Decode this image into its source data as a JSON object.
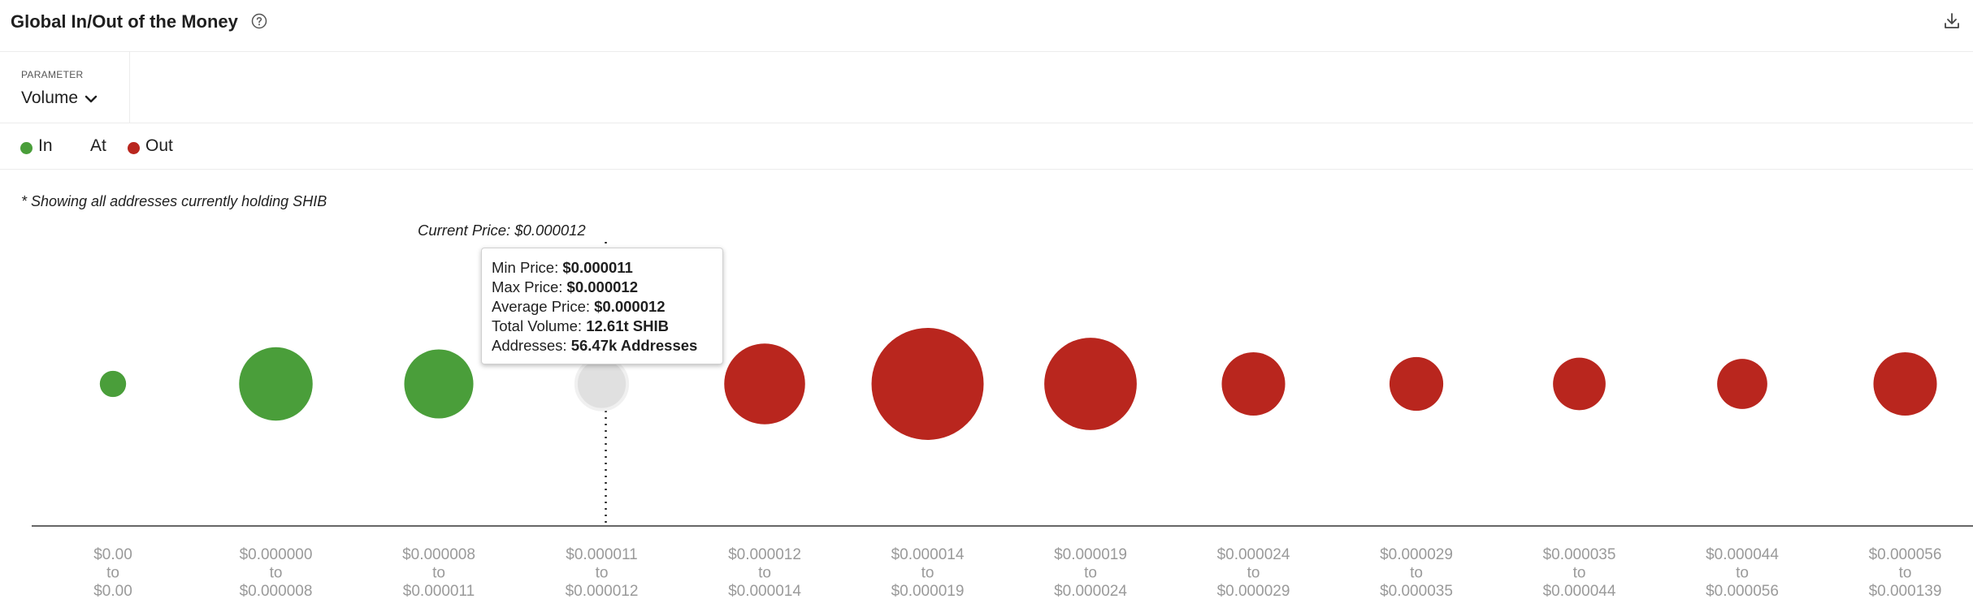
{
  "header": {
    "title": "Global In/Out of the Money",
    "help_icon": "help-circle-icon",
    "download_icon": "download-icon"
  },
  "parameter": {
    "label": "PARAMETER",
    "value": "Volume",
    "icon": "chevron-down-icon"
  },
  "legend": {
    "items": [
      {
        "label": "In",
        "color": "#4a9e3a"
      },
      {
        "label": "At",
        "color": ""
      },
      {
        "label": "Out",
        "color": "#b9261e"
      }
    ]
  },
  "note": "* Showing all addresses currently holding SHIB",
  "current_price_label": "Current Price: $0.000012",
  "tooltip": {
    "lines": [
      {
        "label": "Min Price: ",
        "value": "$0.000011"
      },
      {
        "label": "Max Price: ",
        "value": "$0.000012"
      },
      {
        "label": "Average Price: ",
        "value": "$0.000012"
      },
      {
        "label": "Total Volume: ",
        "value": "12.61t SHIB"
      },
      {
        "label": "Addresses: ",
        "value": "56.47k Addresses"
      }
    ]
  },
  "chart_data": {
    "type": "bubble",
    "colors": {
      "in": "#4a9e3a",
      "at": "#e0e0e0",
      "out": "#b9261e"
    },
    "bins": [
      {
        "from": "$0.00",
        "to": "$0.00",
        "status": "in",
        "size": 0.055
      },
      {
        "from": "$0.000000",
        "to": "$0.000008",
        "status": "in",
        "size": 0.43
      },
      {
        "from": "$0.000008",
        "to": "$0.000011",
        "status": "in",
        "size": 0.38
      },
      {
        "from": "$0.000011",
        "to": "$0.000012",
        "status": "at",
        "size": 0.21
      },
      {
        "from": "$0.000012",
        "to": "$0.000014",
        "status": "out",
        "size": 0.52
      },
      {
        "from": "$0.000014",
        "to": "$0.000019",
        "status": "out",
        "size": 1.0
      },
      {
        "from": "$0.000019",
        "to": "$0.000024",
        "status": "out",
        "size": 0.68
      },
      {
        "from": "$0.000024",
        "to": "$0.000029",
        "status": "out",
        "size": 0.32
      },
      {
        "from": "$0.000029",
        "to": "$0.000035",
        "status": "out",
        "size": 0.23
      },
      {
        "from": "$0.000035",
        "to": "$0.000044",
        "status": "out",
        "size": 0.22
      },
      {
        "from": "$0.000044",
        "to": "$0.000056",
        "status": "out",
        "size": 0.2
      },
      {
        "from": "$0.000056",
        "to": "$0.000139",
        "status": "out",
        "size": 0.32
      }
    ],
    "tick_connector": "to",
    "current_price_bin": 3
  }
}
